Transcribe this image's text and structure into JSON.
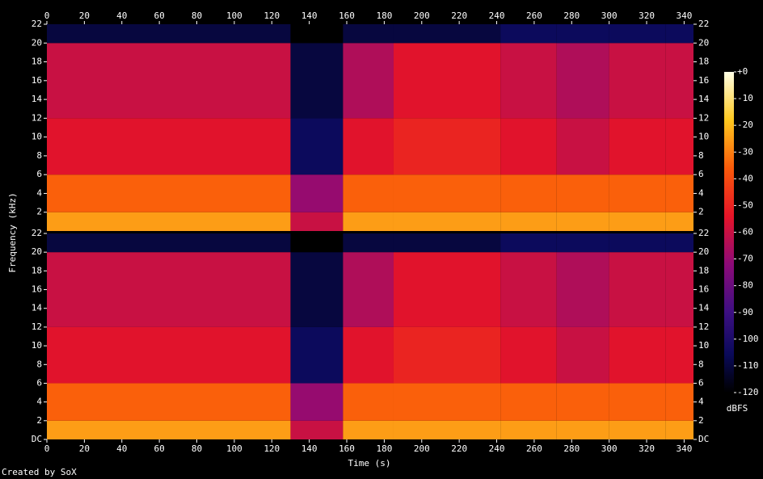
{
  "chart_data": {
    "type": "spectrogram",
    "x_label": "Time (s)",
    "y_label": "Frequency (kHz)",
    "footer": "Created by SoX",
    "xlim": [
      0,
      345
    ],
    "xticks": [
      0,
      20,
      40,
      60,
      80,
      100,
      120,
      140,
      160,
      180,
      200,
      220,
      240,
      260,
      280,
      300,
      320,
      340
    ],
    "ylim": [
      0,
      22
    ],
    "panels": [
      {
        "yticks": [
          2,
          4,
          6,
          8,
          10,
          12,
          14,
          16,
          18,
          20,
          22
        ]
      },
      {
        "yticks": [
          {
            "value": 0,
            "label": "DC"
          },
          2,
          4,
          6,
          8,
          10,
          12,
          14,
          16,
          18,
          20,
          22
        ]
      }
    ],
    "bins": [
      0,
      130,
      158,
      185,
      242,
      272,
      300,
      330,
      345
    ],
    "freq_bins": [
      0,
      2,
      6,
      12,
      20,
      22
    ],
    "channels": [
      {
        "values": [
          [
            -25,
            -60,
            -25,
            -25,
            -25,
            -25,
            -25,
            -25
          ],
          [
            -35,
            -70,
            -35,
            -35,
            -35,
            -35,
            -35,
            -35
          ],
          [
            -55,
            -105,
            -55,
            -50,
            -55,
            -60,
            -55,
            -55
          ],
          [
            -60,
            -110,
            -65,
            -55,
            -60,
            -65,
            -60,
            -60
          ],
          [
            -110,
            -120,
            -110,
            -110,
            -105,
            -105,
            -105,
            -105
          ]
        ]
      },
      {
        "values": [
          [
            -25,
            -60,
            -25,
            -25,
            -25,
            -25,
            -25,
            -25
          ],
          [
            -35,
            -70,
            -35,
            -35,
            -35,
            -35,
            -35,
            -35
          ],
          [
            -55,
            -105,
            -55,
            -50,
            -55,
            -60,
            -55,
            -55
          ],
          [
            -60,
            -110,
            -65,
            -55,
            -60,
            -65,
            -60,
            -60
          ],
          [
            -110,
            -120,
            -110,
            -110,
            -105,
            -105,
            -105,
            -105
          ]
        ]
      }
    ],
    "colorbar": {
      "label": "dBFS",
      "lim": [
        -120,
        0
      ],
      "ticks": [
        {
          "value": 0,
          "label": "+0"
        },
        -10,
        -20,
        -30,
        -40,
        -50,
        -60,
        -70,
        -80,
        -90,
        -100,
        -110,
        -120
      ]
    }
  }
}
